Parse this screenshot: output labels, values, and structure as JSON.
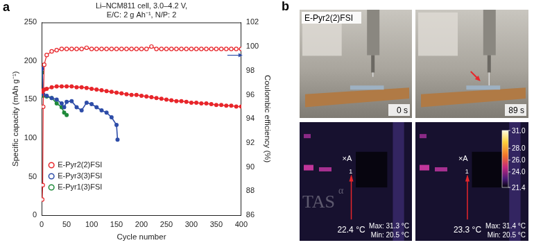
{
  "panel_a": "a",
  "chart_data": {
    "type": "scatter",
    "title": [
      "Li–NCM811 cell, 3.0–4.2 V,",
      "E/C: 2 g Ah⁻¹, N/P: 2"
    ],
    "x_label": "Cycle number",
    "y_label": "Specific capacity (mAh g⁻¹)",
    "y2_label": "Coulombic efficiency (%)",
    "xlim": [
      0,
      400
    ],
    "xticks": [
      0,
      50,
      100,
      150,
      200,
      250,
      300,
      350,
      400
    ],
    "ylim": [
      0,
      250
    ],
    "yticks": [
      0,
      50,
      100,
      150,
      200,
      250
    ],
    "y2lim": [
      86,
      102
    ],
    "y2ticks": [
      86,
      88,
      90,
      92,
      94,
      96,
      98,
      100,
      102
    ],
    "grid": false,
    "legend": "lower left",
    "series": [
      {
        "name": "E-Pyr2(2)FSI",
        "color": "#e8262b",
        "marker": "circle",
        "x": [
          1,
          2,
          3,
          5,
          10,
          20,
          30,
          40,
          50,
          60,
          70,
          80,
          90,
          100,
          110,
          120,
          130,
          140,
          150,
          160,
          170,
          180,
          190,
          200,
          210,
          220,
          230,
          240,
          250,
          260,
          270,
          280,
          290,
          300,
          310,
          320,
          330,
          340,
          350,
          360,
          370,
          380,
          390,
          400
        ],
        "values": [
          160,
          161,
          162,
          163,
          164,
          166,
          167,
          167,
          167,
          167,
          166,
          166,
          165,
          164,
          163,
          162,
          161,
          160,
          159,
          158,
          157,
          156,
          156,
          155,
          154,
          153,
          152,
          151,
          150,
          149,
          148,
          148,
          147,
          146,
          146,
          145,
          145,
          144,
          143,
          143,
          142,
          142,
          141,
          141
        ],
        "ce_values": [
          87.3,
          88.5,
          95.0,
          98.5,
          99.3,
          99.6,
          99.7,
          99.8,
          99.8,
          99.8,
          99.8,
          99.8,
          99.9,
          99.8,
          99.8,
          99.8,
          99.8,
          99.8,
          99.8,
          99.8,
          99.8,
          99.8,
          99.8,
          99.8,
          99.8,
          100.0,
          99.8,
          99.8,
          99.8,
          99.8,
          99.8,
          99.8,
          99.8,
          99.8,
          99.8,
          99.8,
          99.8,
          99.8,
          99.8,
          99.8,
          99.8,
          99.8,
          99.8,
          99.8
        ]
      },
      {
        "name": "E-Pyr3(3)FSI",
        "color": "#2e4da8",
        "marker": "circle",
        "x": [
          1,
          3,
          10,
          20,
          30,
          40,
          45,
          50,
          60,
          70,
          80,
          90,
          100,
          110,
          120,
          130,
          140,
          150,
          152
        ],
        "values": [
          190,
          157,
          155,
          152,
          150,
          145,
          140,
          147,
          148,
          140,
          136,
          146,
          144,
          140,
          136,
          133,
          127,
          117,
          98
        ]
      },
      {
        "name": "E-Pyr1(3)FSI",
        "color": "#1f8a3a",
        "marker": "circle",
        "x": [
          1,
          3,
          10,
          20,
          30,
          40,
          45,
          50
        ],
        "values": [
          185,
          155,
          154,
          152,
          145,
          140,
          133,
          130
        ]
      }
    ]
  },
  "panel_b": {
    "label": "b",
    "sample": "E-Pyr2(2)FSI",
    "photos": [
      {
        "time": "0 s"
      },
      {
        "time": "89 s"
      }
    ],
    "thermal": [
      {
        "spot": "×A",
        "marker": "1",
        "temperature": "22.4 °C",
        "max": "Max: 31.3 °C",
        "min": "Min: 20.5 °C"
      },
      {
        "spot": "×A",
        "marker": "1",
        "temperature": "23.3 °C",
        "max": "Max: 31.4 °C",
        "min": "Min: 20.5 °C"
      }
    ],
    "watermark": "TAS",
    "watermark_sup": "α",
    "colorbar": {
      "range": [
        21.4,
        31.0
      ],
      "ticks": [
        {
          "value": 31.0,
          "label": "31.0"
        },
        {
          "value": 28.0,
          "label": "28.0"
        },
        {
          "value": 26.0,
          "label": "26.0"
        },
        {
          "value": 24.0,
          "label": "24.0"
        },
        {
          "value": 21.4,
          "label": "21.4"
        }
      ]
    }
  }
}
